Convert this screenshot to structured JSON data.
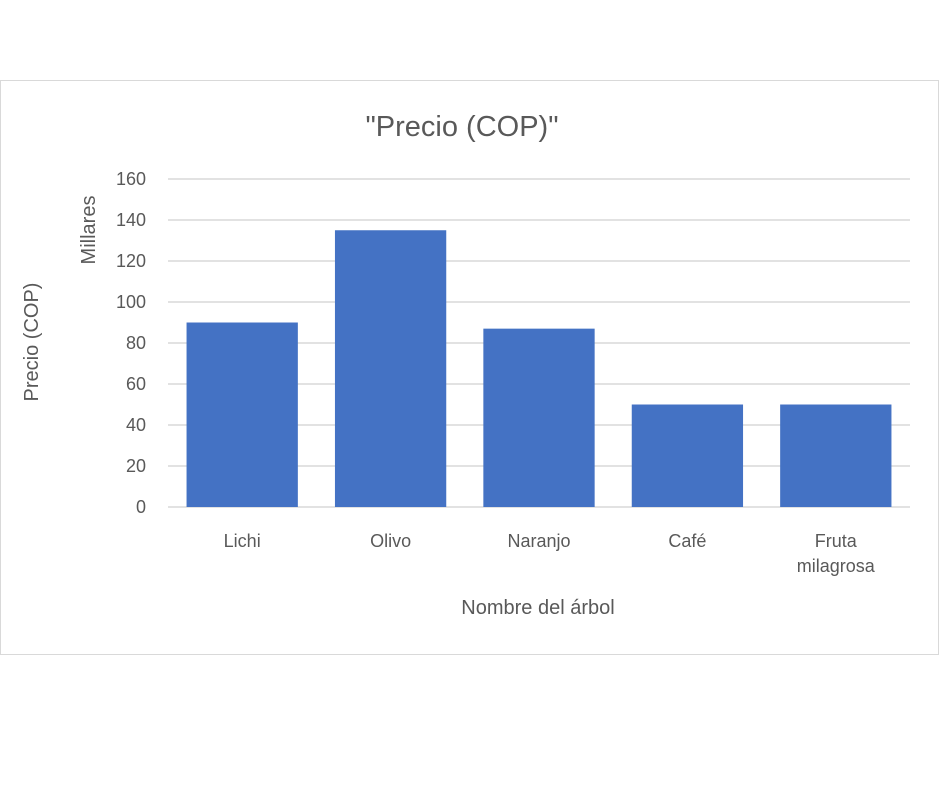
{
  "chart_data": {
    "type": "bar",
    "title": "\"Precio (COP)\"",
    "xlabel": "Nombre del árbol",
    "ylabel": "Precio (COP)",
    "display_units": "Millares",
    "categories": [
      "Lichi",
      "Olivo",
      "Naranjo",
      "Café",
      "Fruta milagrosa"
    ],
    "category_lines": [
      [
        "Lichi"
      ],
      [
        "Olivo"
      ],
      [
        "Naranjo"
      ],
      [
        "Café"
      ],
      [
        "Fruta",
        "milagrosa"
      ]
    ],
    "values": [
      90,
      135,
      87,
      50,
      50
    ],
    "ylim": [
      0,
      160
    ],
    "yticks": [
      0,
      20,
      40,
      60,
      80,
      100,
      120,
      140,
      160
    ],
    "grid": true,
    "bar_color": "#4472C4",
    "grid_color": "#d9d9d9",
    "text_color": "#595959"
  }
}
